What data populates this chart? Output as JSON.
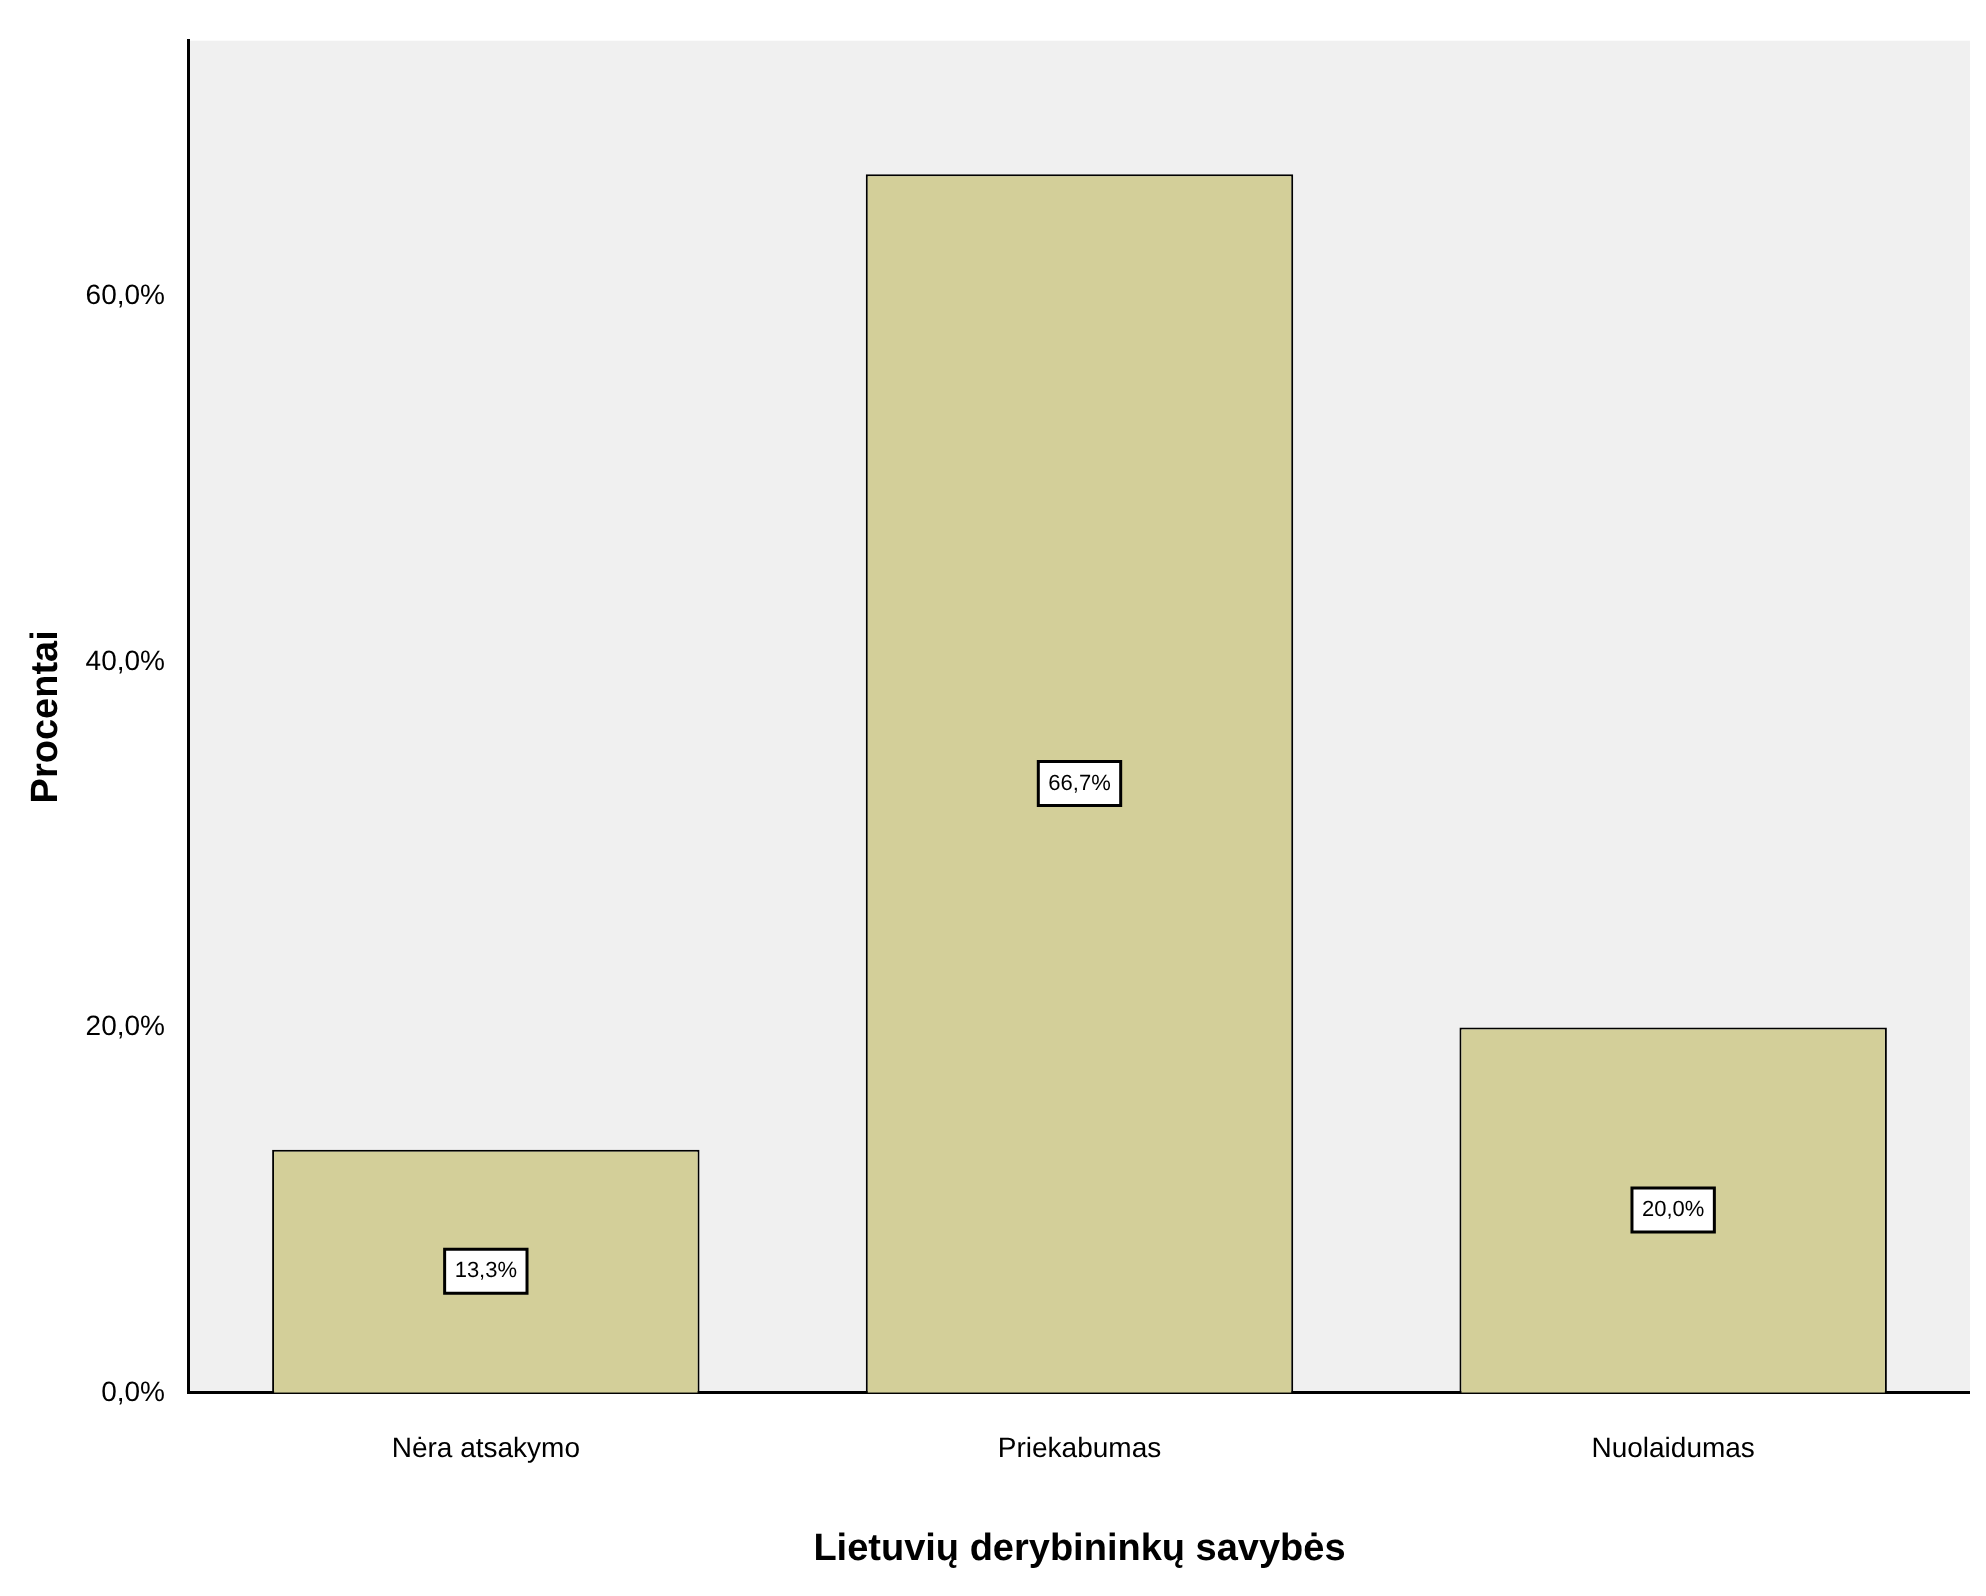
{
  "chart_data": {
    "type": "bar",
    "xlabel": "Lietuvių derybininkų savybės",
    "ylabel": "Procentai",
    "categories": [
      "Nėra atsakymo",
      "Priekabumas",
      "Nuolaidumas"
    ],
    "values": [
      13.3,
      66.7,
      20.0
    ],
    "color": "#d3cf99",
    "value_labels": [
      "13,3%",
      "66,7%",
      "20,0%"
    ],
    "ylim": [
      0,
      74
    ],
    "yticks": [
      {
        "value": 0,
        "label": "0,0%"
      },
      {
        "value": 20,
        "label": "20,0%"
      },
      {
        "value": 40,
        "label": "40,0%"
      },
      {
        "value": 60,
        "label": "60,0%"
      }
    ]
  }
}
